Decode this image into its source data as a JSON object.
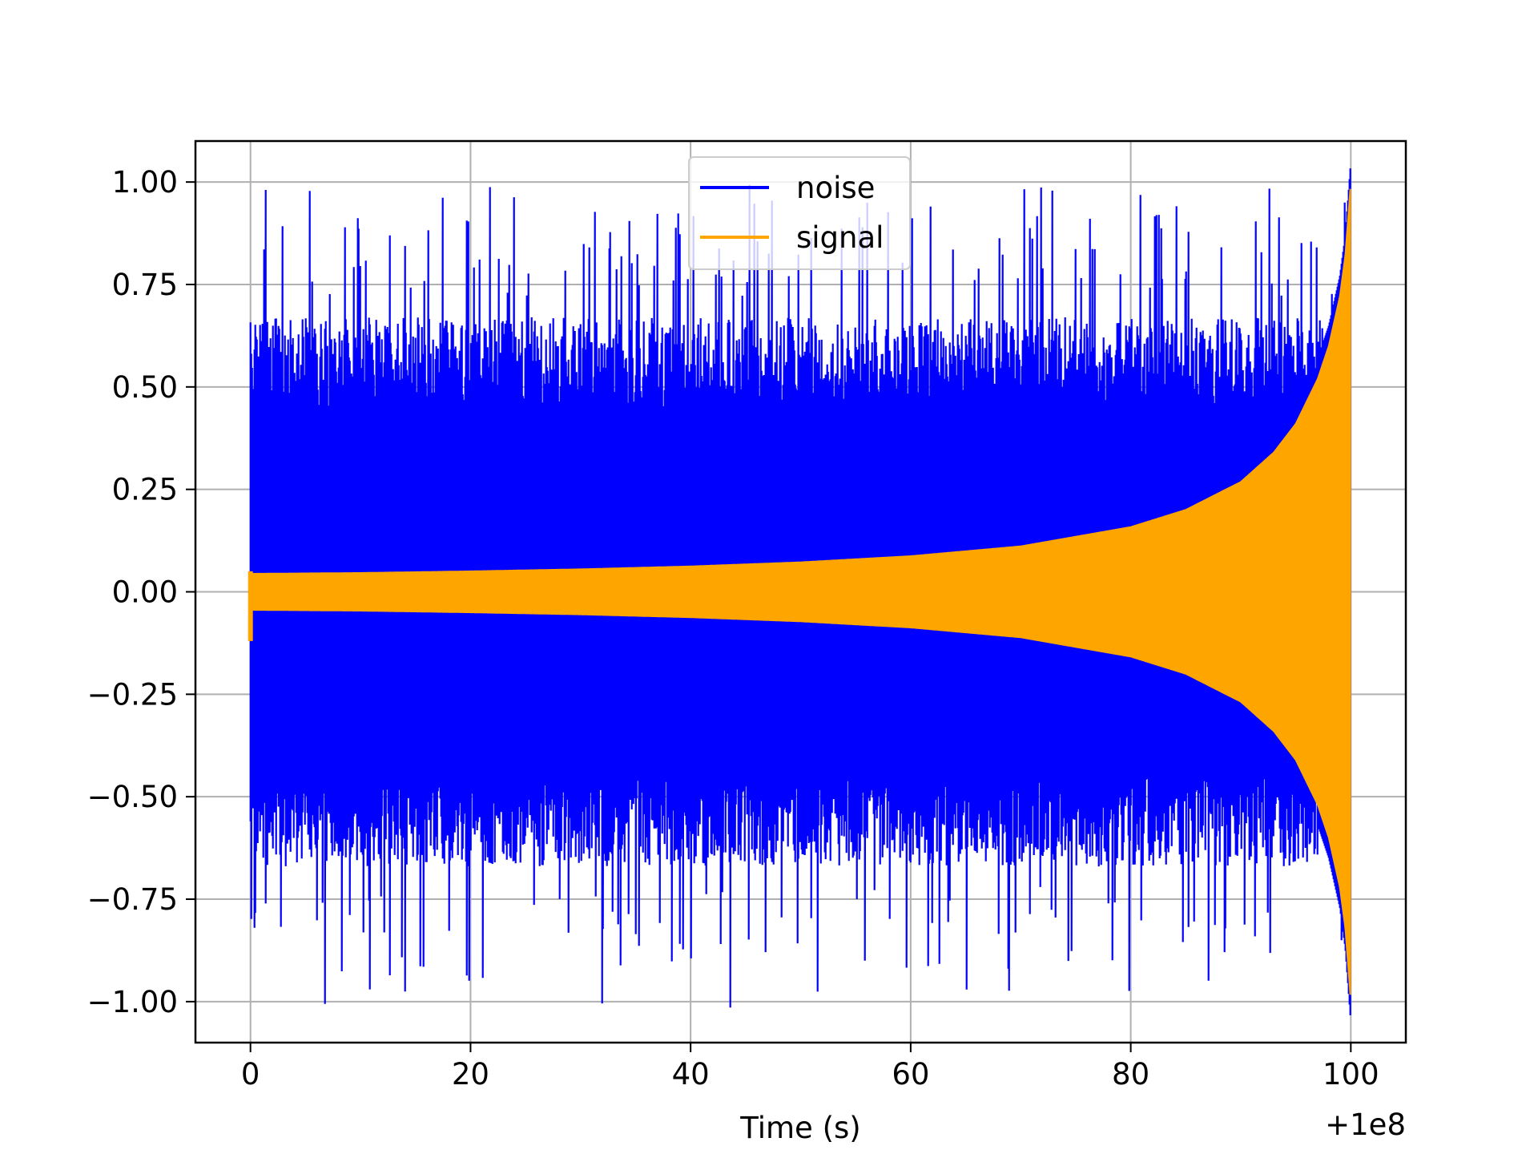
{
  "chart_data": {
    "type": "line",
    "title": "",
    "xlabel": "Time (s)",
    "ylabel": "",
    "x_offset_label": "+1e8",
    "xlim": [
      -5,
      105
    ],
    "ylim": [
      -1.1,
      1.1
    ],
    "x_ticks": [
      0,
      20,
      40,
      60,
      80,
      100
    ],
    "x_tick_labels": [
      "0",
      "20",
      "40",
      "60",
      "80",
      "100"
    ],
    "y_ticks": [
      1.0,
      0.75,
      0.5,
      0.25,
      0.0,
      -0.25,
      -0.5,
      -0.75,
      -1.0
    ],
    "y_tick_labels": [
      "1.00",
      "0.75",
      "0.50",
      "0.25",
      "0.00",
      "−0.25",
      "−0.50",
      "−0.75",
      "−1.00"
    ],
    "grid": true,
    "legend_position": "top-center",
    "series": [
      {
        "name": "noise",
        "color": "#0000ff",
        "description_values": {
          "x_start": 0,
          "x_end": 100,
          "typical_max": 0.6,
          "typical_min": -0.6,
          "peak_max": 1.0,
          "peak_min": -1.02
        }
      },
      {
        "name": "signal",
        "color": "#ffa500",
        "envelope": {
          "x": [
            0,
            10,
            20,
            30,
            40,
            50,
            60,
            70,
            80,
            85,
            90,
            93,
            95,
            97,
            98,
            99,
            99.5,
            100
          ],
          "amplitude": [
            0.044,
            0.046,
            0.05,
            0.055,
            0.062,
            0.072,
            0.087,
            0.111,
            0.158,
            0.2,
            0.268,
            0.34,
            0.41,
            0.52,
            0.6,
            0.72,
            0.82,
            1.0
          ]
        }
      }
    ]
  }
}
